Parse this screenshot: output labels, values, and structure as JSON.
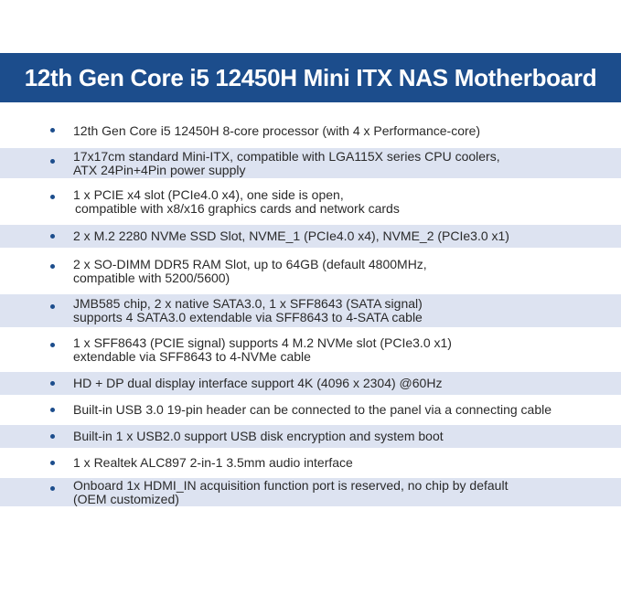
{
  "header": {
    "title": "12th Gen Core i5 12450H Mini ITX NAS Motherboard"
  },
  "colors": {
    "banner": "#1c4d8c",
    "row_shade": "#dde3f1",
    "bullet": "#1c4d8c",
    "text": "#2a2a2a"
  },
  "features": [
    {
      "lines": [
        "12th Gen Core i5 12450H 8-core processor (with 4 x Performance-core)"
      ]
    },
    {
      "lines": [
        "17x17cm standard Mini-ITX, compatible with LGA115X series CPU coolers,",
        "ATX 24Pin+4Pin power supply"
      ]
    },
    {
      "lines": [
        "1 x PCIE x4 slot (PCIe4.0 x4), one side is open,",
        " compatible with x8/x16 graphics cards and network cards"
      ]
    },
    {
      "lines": [
        "2 x M.2 2280 NVMe SSD Slot, NVME_1 (PCIe4.0 x4),  NVME_2 (PCIe3.0 x1)"
      ]
    },
    {
      "lines": [
        "2 x SO-DIMM DDR5 RAM Slot, up to 64GB (default 4800MHz,",
        "compatible with 5200/5600)"
      ]
    },
    {
      "lines": [
        "JMB585 chip, 2 x native SATA3.0, 1 x SFF8643 (SATA signal)",
        "supports 4 SATA3.0 extendable via SFF8643 to 4-SATA cable"
      ]
    },
    {
      "lines": [
        "1 x SFF8643 (PCIE signal) supports 4 M.2 NVMe slot (PCIe3.0 x1)",
        "extendable via SFF8643 to 4-NVMe cable"
      ]
    },
    {
      "lines": [
        "HD + DP dual display interface support 4K (4096 x 2304) @60Hz"
      ]
    },
    {
      "lines": [
        "Built-in USB 3.0 19-pin header can be connected to the panel via a connecting cable"
      ]
    },
    {
      "lines": [
        "Built-in 1 x USB2.0 support USB disk encryption and system boot"
      ]
    },
    {
      "lines": [
        "1 x Realtek ALC897 2-in-1 3.5mm audio interface"
      ]
    },
    {
      "lines": [
        "Onboard 1x HDMI_IN acquisition function port is reserved, no chip by default",
        "(OEM customized)"
      ]
    }
  ]
}
